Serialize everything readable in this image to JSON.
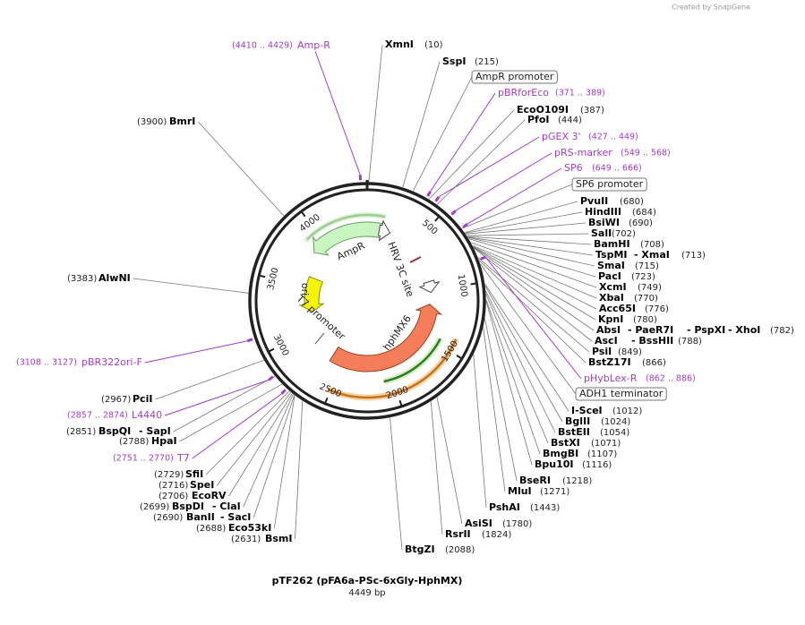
{
  "watermark": "Created by SnapGene",
  "title": "pTF262 (pFA6a-PSc-6xGly-HphMX)",
  "length": "4449 bp",
  "ticks": [
    "500",
    "1000",
    "1500",
    "2000",
    "2500",
    "3000",
    "3500",
    "4000"
  ],
  "inner_labels": [
    "AmpR",
    "ori",
    "T7 promoter",
    "hphMX6",
    "HRV 3C site"
  ],
  "sites": [
    {
      "names": [
        "XmnI"
      ],
      "position": "(10)"
    },
    {
      "names": [
        "SspI"
      ],
      "position": "(215)"
    },
    {
      "names": [
        "EcoO109I"
      ],
      "position": "(387)"
    },
    {
      "names": [
        "PfoI"
      ],
      "position": "(444)"
    },
    {
      "names": [
        "PvuII"
      ],
      "position": "(680)"
    },
    {
      "names": [
        "HindIII"
      ],
      "position": "(684)"
    },
    {
      "names": [
        "BsiWI"
      ],
      "position": "(690)"
    },
    {
      "names": [
        "SalI"
      ],
      "position": "(702)"
    },
    {
      "names": [
        "BamHI"
      ],
      "position": "(708)"
    },
    {
      "names": [
        "TspMI",
        "- XmaI"
      ],
      "position": "(713)"
    },
    {
      "names": [
        "SmaI"
      ],
      "position": "(715)"
    },
    {
      "names": [
        "PacI"
      ],
      "position": "(723)"
    },
    {
      "names": [
        "XcmI"
      ],
      "position": "(749)"
    },
    {
      "names": [
        "XbaI"
      ],
      "position": "(770)"
    },
    {
      "names": [
        "Acc65I"
      ],
      "position": "(776)"
    },
    {
      "names": [
        "KpnI"
      ],
      "position": "(780)"
    },
    {
      "names": [
        "AbsI",
        "- PaeR7I",
        "- PspXI",
        "- XhoI"
      ],
      "position": "(782)"
    },
    {
      "names": [
        "AscI",
        "- BssHII"
      ],
      "position": "(788)"
    },
    {
      "names": [
        "PsiI"
      ],
      "position": "(849)"
    },
    {
      "names": [
        "BstZ17I"
      ],
      "position": "(866)"
    },
    {
      "names": [
        "I-SceI"
      ],
      "position": "(1012)"
    },
    {
      "names": [
        "BglII"
      ],
      "position": "(1024)"
    },
    {
      "names": [
        "BstEII"
      ],
      "position": "(1054)"
    },
    {
      "names": [
        "BstXI"
      ],
      "position": "(1071)"
    },
    {
      "names": [
        "BmgBI"
      ],
      "position": "(1107)"
    },
    {
      "names": [
        "Bpu10I"
      ],
      "position": "(1116)"
    },
    {
      "names": [
        "BseRI"
      ],
      "position": "(1218)"
    },
    {
      "names": [
        "MluI"
      ],
      "position": "(1271)"
    },
    {
      "names": [
        "PshAI"
      ],
      "position": "(1443)"
    },
    {
      "names": [
        "AsiSI"
      ],
      "position": "(1780)"
    },
    {
      "names": [
        "RsrII"
      ],
      "position": "(1824)"
    },
    {
      "names": [
        "BtgZI"
      ],
      "position": "(2088)"
    },
    {
      "names": [
        "BmrI"
      ],
      "position": "(3900)"
    },
    {
      "names": [
        "AlwNI"
      ],
      "position": "(3383)"
    },
    {
      "names": [
        "PciI"
      ],
      "position": "(2967)"
    },
    {
      "names": [
        "BspQI",
        "- SapI"
      ],
      "position": "(2851)"
    },
    {
      "names": [
        "HpaI"
      ],
      "position": "(2788)"
    },
    {
      "names": [
        "SfiI"
      ],
      "position": "(2729)"
    },
    {
      "names": [
        "SpeI"
      ],
      "position": "(2716)"
    },
    {
      "names": [
        "EcoRV"
      ],
      "position": "(2706)"
    },
    {
      "names": [
        "BspDI",
        "- ClaI"
      ],
      "position": "(2699)"
    },
    {
      "names": [
        "BanII",
        "- SacI"
      ],
      "position": "(2690)"
    },
    {
      "names": [
        "Eco53kI"
      ],
      "position": "(2688)"
    },
    {
      "names": [
        "BsmI"
      ],
      "position": "(2631)"
    }
  ],
  "features": [
    {
      "name": "Amp-R",
      "range": "(4410 .. 4429)"
    },
    {
      "name": "pBRforEco",
      "range": "(371 .. 389)"
    },
    {
      "name": "pGEX 3'",
      "range": "(427 .. 449)"
    },
    {
      "name": "pRS-marker",
      "range": "(549 .. 568)"
    },
    {
      "name": "SP6",
      "range": "(649 .. 666)"
    },
    {
      "name": "pHybLex-R",
      "range": "(862 .. 886)"
    },
    {
      "name": "pBR322ori-F",
      "range": "(3108 .. 3127)"
    },
    {
      "name": "L4440",
      "range": "(2857 .. 2874)"
    },
    {
      "name": "T7",
      "range": "(2751 .. 2770)"
    }
  ],
  "boxes": [
    "AmpR promoter",
    "SP6 promoter",
    "ADH1 terminator"
  ]
}
